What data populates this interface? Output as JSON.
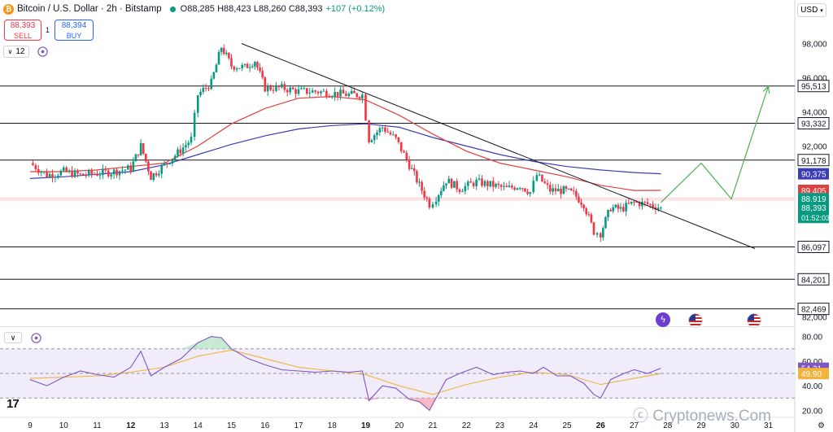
{
  "header": {
    "symbol": "Bitcoin / U.S. Dollar · 2h · Bitstamp",
    "coin_glyph": "₿",
    "open": "O88,285",
    "high": "H88,423",
    "low": "L88,260",
    "close": "C88,393",
    "change": "+107 (+0.12%)"
  },
  "trade": {
    "sell_price": "88,393",
    "sell_label": "SELL",
    "buy_price": "88,394",
    "buy_label": "BUY",
    "spread": "1"
  },
  "toolbar": {
    "count": "12",
    "currency": "USD"
  },
  "watermark": "Cryptonews.Com",
  "logo": "17",
  "colors": {
    "up": "#089981",
    "down": "#f23645",
    "ma_fast": "#e0403f",
    "ma_slow": "#3c3cb4",
    "rsi": "#7e57c2",
    "rsi_ma": "#f2b33d"
  },
  "chart_data": [
    {
      "type": "candlestick",
      "title": "Bitcoin / U.S. Dollar · 2h · Bitstamp",
      "x_ticks": [
        "9",
        "10",
        "11",
        "12",
        "13",
        "14",
        "15",
        "16",
        "17",
        "18",
        "19",
        "20",
        "21",
        "22",
        "23",
        "24",
        "25",
        "26",
        "27",
        "28",
        "29",
        "30",
        "31"
      ],
      "y_ticks": [
        98000,
        96000,
        94000,
        92000,
        82000
      ],
      "y_tick_labels": [
        "98,000",
        "96,000",
        "94,000",
        "92,000",
        "82,000"
      ],
      "ylim": [
        81500,
        99500
      ],
      "path_points": [
        [
          9.0,
          91000
        ],
        [
          9.5,
          90300
        ],
        [
          10.0,
          90500
        ],
        [
          10.5,
          90300
        ],
        [
          11.0,
          90400
        ],
        [
          11.5,
          90500
        ],
        [
          12.0,
          90700
        ],
        [
          12.3,
          92000
        ],
        [
          12.6,
          90200
        ],
        [
          13.0,
          90900
        ],
        [
          13.4,
          91600
        ],
        [
          13.8,
          92400
        ],
        [
          14.0,
          95000
        ],
        [
          14.4,
          95700
        ],
        [
          14.7,
          97800
        ],
        [
          15.0,
          96700
        ],
        [
          15.4,
          96600
        ],
        [
          15.7,
          97000
        ],
        [
          16.0,
          95400
        ],
        [
          16.5,
          95400
        ],
        [
          17.0,
          95200
        ],
        [
          17.5,
          95200
        ],
        [
          18.0,
          95100
        ],
        [
          18.5,
          95000
        ],
        [
          18.9,
          95000
        ],
        [
          19.1,
          92400
        ],
        [
          19.5,
          93100
        ],
        [
          19.9,
          92400
        ],
        [
          20.3,
          90900
        ],
        [
          20.6,
          89700
        ],
        [
          20.9,
          88600
        ],
        [
          21.1,
          89000
        ],
        [
          21.4,
          90000
        ],
        [
          21.8,
          89500
        ],
        [
          22.3,
          89900
        ],
        [
          22.8,
          89700
        ],
        [
          23.2,
          89500
        ],
        [
          23.6,
          89700
        ],
        [
          23.9,
          89300
        ],
        [
          24.1,
          90300
        ],
        [
          24.5,
          89400
        ],
        [
          24.9,
          89400
        ],
        [
          25.2,
          89200
        ],
        [
          25.5,
          88600
        ],
        [
          25.8,
          87000
        ],
        [
          26.0,
          86900
        ],
        [
          26.3,
          88400
        ],
        [
          26.6,
          88300
        ],
        [
          27.0,
          88700
        ],
        [
          27.4,
          88600
        ],
        [
          27.8,
          88393
        ]
      ],
      "last_close": 88393,
      "lines": {
        "ma_fast": [
          [
            9.0,
            90500
          ],
          [
            10.0,
            90500
          ],
          [
            11.0,
            90600
          ],
          [
            12.0,
            90800
          ],
          [
            13.0,
            91000
          ],
          [
            14.0,
            92000
          ],
          [
            15.0,
            93300
          ],
          [
            16.0,
            94200
          ],
          [
            17.0,
            94800
          ],
          [
            18.0,
            94900
          ],
          [
            19.0,
            94700
          ],
          [
            20.0,
            93800
          ],
          [
            21.0,
            92700
          ],
          [
            22.0,
            91700
          ],
          [
            23.0,
            91000
          ],
          [
            24.0,
            90600
          ],
          [
            25.0,
            90200
          ],
          [
            26.0,
            89700
          ],
          [
            27.0,
            89400
          ],
          [
            27.8,
            89405
          ]
        ],
        "ma_slow": [
          [
            9.0,
            90100
          ],
          [
            10.0,
            90200
          ],
          [
            11.0,
            90350
          ],
          [
            12.0,
            90500
          ],
          [
            13.0,
            90900
          ],
          [
            14.0,
            91500
          ],
          [
            15.0,
            92100
          ],
          [
            16.0,
            92600
          ],
          [
            17.0,
            93000
          ],
          [
            18.0,
            93200
          ],
          [
            19.0,
            93300
          ],
          [
            20.0,
            93100
          ],
          [
            21.0,
            92500
          ],
          [
            22.0,
            92000
          ],
          [
            23.0,
            91500
          ],
          [
            24.0,
            91100
          ],
          [
            25.0,
            90800
          ],
          [
            26.0,
            90600
          ],
          [
            27.0,
            90450
          ],
          [
            27.8,
            90375
          ]
        ]
      },
      "levels": [
        95513,
        93332,
        91178,
        86097,
        84201,
        82469
      ],
      "level_labels": [
        "95,513",
        "93,332",
        "91,178",
        "86,097",
        "84,201",
        "82,469"
      ],
      "price_tags": [
        {
          "label": "90,375",
          "color": "#3c3cb4",
          "value": 90375
        },
        {
          "label": "89,405",
          "color": "#e0403f",
          "value": 89405
        },
        {
          "label": "88,919",
          "color": "#089981",
          "value": 88919
        },
        {
          "label": "88,393",
          "sub": "01:52:03",
          "color": "#089981",
          "value": 88393
        }
      ],
      "trendline": [
        [
          15.3,
          98000
        ],
        [
          30.6,
          86000
        ]
      ],
      "projection": [
        [
          27.8,
          88700
        ],
        [
          29.0,
          91000
        ],
        [
          29.9,
          88900
        ],
        [
          31.0,
          95500
        ]
      ],
      "shaded_band": [
        88800,
        89000
      ]
    },
    {
      "type": "line",
      "title": "RSI",
      "x_ticks": [
        "9",
        "10",
        "11",
        "12",
        "13",
        "14",
        "15",
        "16",
        "17",
        "18",
        "19",
        "20",
        "21",
        "22",
        "23",
        "24",
        "25",
        "26",
        "27",
        "28",
        "29",
        "30",
        "31"
      ],
      "y_ticks": [
        80,
        60,
        40,
        20
      ],
      "y_tick_labels": [
        "80.00",
        "60.00",
        "40.00",
        "20.00"
      ],
      "ylim": [
        15,
        87
      ],
      "upper_band": 70,
      "lower_band": 30,
      "series": [
        {
          "values": [
            [
              9.0,
              45
            ],
            [
              9.5,
              40
            ],
            [
              10.0,
              47
            ],
            [
              10.5,
              52
            ],
            [
              11.0,
              49
            ],
            [
              11.5,
              47
            ],
            [
              12.0,
              55
            ],
            [
              12.3,
              68
            ],
            [
              12.6,
              48
            ],
            [
              13.0,
              55
            ],
            [
              13.5,
              62
            ],
            [
              14.0,
              75
            ],
            [
              14.4,
              80
            ],
            [
              14.7,
              79
            ],
            [
              15.0,
              70
            ],
            [
              15.5,
              62
            ],
            [
              16.0,
              57
            ],
            [
              16.5,
              53
            ],
            [
              17.0,
              52
            ],
            [
              17.5,
              51
            ],
            [
              18.0,
              52
            ],
            [
              18.5,
              51
            ],
            [
              18.9,
              52
            ],
            [
              19.1,
              28
            ],
            [
              19.5,
              40
            ],
            [
              19.9,
              38
            ],
            [
              20.3,
              29
            ],
            [
              20.6,
              27
            ],
            [
              20.9,
              20
            ],
            [
              21.1,
              30
            ],
            [
              21.4,
              45
            ],
            [
              21.8,
              50
            ],
            [
              22.3,
              55
            ],
            [
              22.8,
              49
            ],
            [
              23.2,
              51
            ],
            [
              23.6,
              52
            ],
            [
              24.0,
              50
            ],
            [
              24.3,
              55
            ],
            [
              24.7,
              48
            ],
            [
              25.1,
              48
            ],
            [
              25.5,
              42
            ],
            [
              25.8,
              33
            ],
            [
              26.0,
              30
            ],
            [
              26.3,
              45
            ],
            [
              26.7,
              50
            ],
            [
              27.0,
              53
            ],
            [
              27.4,
              50
            ],
            [
              27.8,
              54.21
            ]
          ]
        },
        {
          "values": [
            [
              9.0,
              46
            ],
            [
              10.0,
              47
            ],
            [
              11.0,
              48
            ],
            [
              12.0,
              51
            ],
            [
              13.0,
              55
            ],
            [
              14.0,
              64
            ],
            [
              15.0,
              69
            ],
            [
              16.0,
              62
            ],
            [
              17.0,
              55
            ],
            [
              18.0,
              52
            ],
            [
              19.0,
              49
            ],
            [
              20.0,
              40
            ],
            [
              21.0,
              33
            ],
            [
              22.0,
              41
            ],
            [
              23.0,
              47
            ],
            [
              24.0,
              51
            ],
            [
              25.0,
              49
            ],
            [
              26.0,
              41
            ],
            [
              27.0,
              46
            ],
            [
              27.8,
              49.9
            ]
          ]
        }
      ],
      "value_tags": [
        {
          "label": "54.21",
          "color": "#7e57c2",
          "value": 54.21
        },
        {
          "label": "49.90",
          "color": "#f2b33d",
          "value": 49.9
        }
      ]
    }
  ]
}
